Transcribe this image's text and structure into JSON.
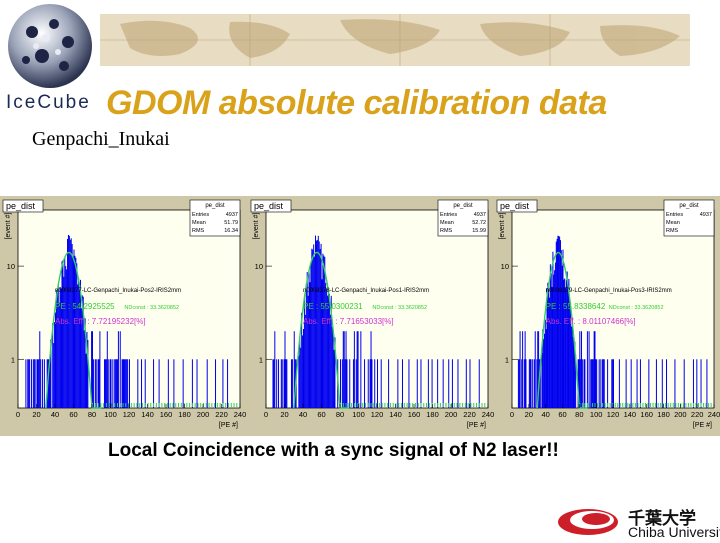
{
  "slide": {
    "title": "GDOM absolute calibration data",
    "author": "Genpachi_Inukai",
    "caption": "Local Coincidence with a sync signal of N2 laser!!",
    "logo_text": "IceCube",
    "university_ja": "千葉大学",
    "university_en": "Chiba University"
  },
  "colors": {
    "title": "#d9a21a",
    "histogram": "#0000ee",
    "fit": "#33cc66",
    "fit_label": "#33cc33",
    "eff_label": "#cc33cc",
    "plot_bg": "#fffff0",
    "panel_bg": "#cfc8a8"
  },
  "chart_data": [
    {
      "type": "bar",
      "title": "pe_dist",
      "stats": {
        "name": "pe_dist",
        "entries_label": "Entries",
        "entries": "4937",
        "mean_label": "Mean",
        "mean": "51.79",
        "rms_label": "RMS",
        "rms": "16.34"
      },
      "run_label": "n0008377-LC-Genpachi_Inukai-Pos2-IRIS2mm",
      "fit_label": "PE : 54.2925525",
      "ndf_label": "NDconst : 33.3620852",
      "eff_label": "Abs. Eff. : 7.72195232[%]",
      "xlabel": "[PE #]",
      "ylabel": "[event #]",
      "yscale": "log",
      "xlim": [
        0,
        240
      ],
      "ylim": [
        0.3,
        40
      ],
      "xticks": [
        "0",
        "20",
        "40",
        "60",
        "80",
        "100",
        "120",
        "140",
        "160",
        "180",
        "200",
        "220",
        "240"
      ],
      "yticks": [
        {
          "value": 1,
          "label": "1"
        },
        {
          "value": 10,
          "label": "10"
        }
      ],
      "fit": {
        "mean": 55,
        "sigma": 9,
        "amplitude": 14
      },
      "peak": 22,
      "bin_width": 1
    },
    {
      "type": "bar",
      "title": "pe_dist",
      "stats": {
        "name": "pe_dist",
        "entries_label": "Entries",
        "entries": "4937",
        "mean_label": "Mean",
        "mean": "52.72",
        "rms_label": "RMS",
        "rms": "15.99"
      },
      "run_label": "n0008378-LC-Genpachi_Inukai-Pos1-IRIS2mm",
      "fit_label": "PE : 55.0300231",
      "ndf_label": "NDconst : 33.3620852",
      "eff_label": "Abs. Eff. : 7.71653033[%]",
      "xlabel": "[PE #]",
      "ylabel": "[event #]",
      "yscale": "log",
      "xlim": [
        0,
        240
      ],
      "ylim": [
        0.3,
        40
      ],
      "xticks": [
        "0",
        "20",
        "40",
        "60",
        "80",
        "100",
        "120",
        "140",
        "160",
        "180",
        "200",
        "220",
        "240"
      ],
      "yticks": [
        {
          "value": 1,
          "label": "1"
        },
        {
          "value": 10,
          "label": "10"
        }
      ],
      "fit": {
        "mean": 55,
        "sigma": 9,
        "amplitude": 14
      },
      "peak": 23,
      "bin_width": 1
    },
    {
      "type": "bar",
      "title": "pe_dist",
      "stats": {
        "name": "pe_dist",
        "entries_label": "Entries",
        "entries": "4937",
        "mean_label": "Mean",
        "mean": "",
        "rms_label": "RMS",
        "rms": ""
      },
      "run_label": "n0008379-LC-Genpachi_Inukai-Pos3-IRIS2mm",
      "fit_label": "PE : 55.8338642",
      "ndf_label": "NDconst : 33.3620852",
      "eff_label": "Abs. Eff. : 8.01107466[%]",
      "xlabel": "[PE #]",
      "ylabel": "[event #]",
      "yscale": "log",
      "xlim": [
        0,
        240
      ],
      "ylim": [
        0.3,
        40
      ],
      "xticks": [
        "0",
        "20",
        "40",
        "60",
        "80",
        "100",
        "120",
        "140",
        "160",
        "180",
        "200",
        "220",
        "240"
      ],
      "yticks": [
        {
          "value": 1,
          "label": "1"
        },
        {
          "value": 10,
          "label": "10"
        }
      ],
      "fit": {
        "mean": 55,
        "sigma": 9,
        "amplitude": 14
      },
      "peak": 22,
      "bin_width": 1
    }
  ]
}
